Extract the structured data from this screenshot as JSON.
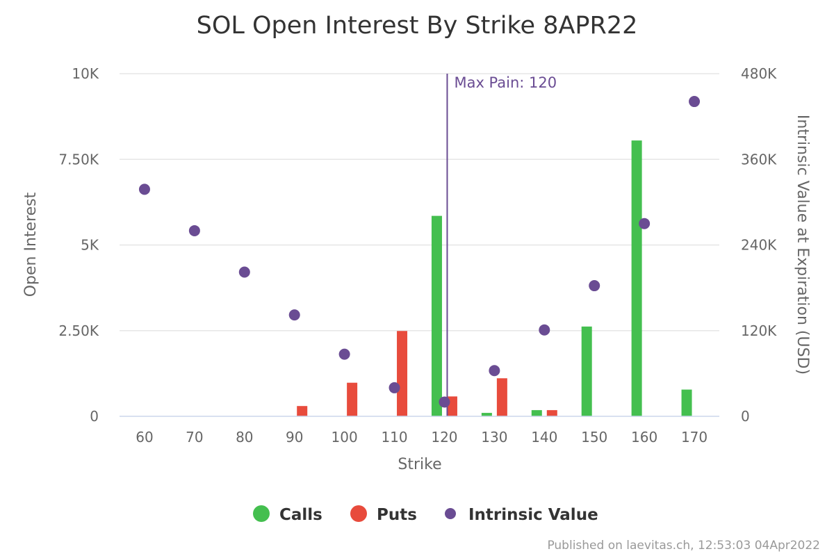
{
  "chart_data": {
    "type": "bar",
    "title": "SOL Open Interest By Strike 8APR22",
    "xlabel": "Strike",
    "ylabel": "Open Interest",
    "y2label": "Intrinsic Value at Expiration (USD)",
    "categories": [
      "60",
      "70",
      "80",
      "90",
      "100",
      "110",
      "120",
      "130",
      "140",
      "150",
      "160",
      "170"
    ],
    "ylim": [
      0,
      10000
    ],
    "y_ticks": [
      0,
      2500,
      5000,
      7500,
      10000
    ],
    "y_tick_labels": [
      "0",
      "2.50K",
      "5K",
      "7.50K",
      "10K"
    ],
    "y2lim": [
      0,
      480000
    ],
    "y2_ticks": [
      0,
      120000,
      240000,
      360000,
      480000
    ],
    "y2_tick_labels": [
      "0",
      "120K",
      "240K",
      "360K",
      "480K"
    ],
    "series": [
      {
        "name": "Calls",
        "type": "bar",
        "axis": "left",
        "color": "#44bf4f",
        "values": [
          0,
          0,
          0,
          0,
          0,
          0,
          5850,
          100,
          180,
          2620,
          8050,
          780
        ]
      },
      {
        "name": "Puts",
        "type": "bar",
        "axis": "left",
        "color": "#e84b3c",
        "values": [
          0,
          0,
          0,
          300,
          980,
          2490,
          580,
          1110,
          180,
          0,
          0,
          0
        ]
      },
      {
        "name": "Intrinsic Value",
        "type": "scatter",
        "axis": "right",
        "color": "#6a4c93",
        "values": [
          318000,
          260000,
          202000,
          142000,
          87000,
          40000,
          20000,
          64000,
          121000,
          183000,
          270000,
          441000
        ]
      }
    ],
    "max_pain": {
      "strike": "120",
      "label": "Max Pain: 120",
      "color": "#6a4c93"
    },
    "grid": true,
    "legend_position": "bottom-center"
  },
  "credit": "Published on laevitas.ch, 12:53:03 04Apr2022"
}
